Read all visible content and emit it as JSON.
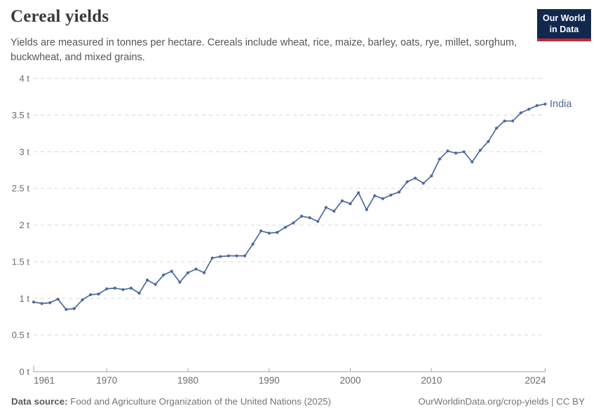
{
  "header": {
    "title": "Cereal yields",
    "subtitle": "Yields are measured in tonnes per hectare. Cereals include wheat, rice, maize, barley, oats, rye, millet, sorghum, buckwheat, and mixed grains.",
    "logo": {
      "line1": "Our World",
      "line2": "in Data"
    }
  },
  "colors": {
    "series_blue": "#4c6a9c",
    "grid": "#d8d8d8",
    "axis": "#a6a6a6",
    "tick_text": "#6b6b6b",
    "logo_navy": "#12284e",
    "logo_red": "#bc2b36"
  },
  "chart_data": {
    "type": "line",
    "title": "Cereal yields",
    "ylabel": "tonnes per hectare",
    "xlabel": "",
    "xlim": [
      1961,
      2024
    ],
    "ylim": [
      0,
      4
    ],
    "grid": "horizontal-dashed",
    "legend_position": "end-of-line-label",
    "y_ticks": [
      {
        "value": 0,
        "label": "0 t"
      },
      {
        "value": 0.5,
        "label": "0.5 t"
      },
      {
        "value": 1,
        "label": "1 t"
      },
      {
        "value": 1.5,
        "label": "1.5 t"
      },
      {
        "value": 2,
        "label": "2 t"
      },
      {
        "value": 2.5,
        "label": "2.5 t"
      },
      {
        "value": 3,
        "label": "3 t"
      },
      {
        "value": 3.5,
        "label": "3.5 t"
      },
      {
        "value": 4,
        "label": "4 t"
      }
    ],
    "x_ticks": [
      {
        "year": 1961,
        "label": "1961",
        "anchor": "start"
      },
      {
        "year": 1970,
        "label": "1970",
        "anchor": "middle"
      },
      {
        "year": 1980,
        "label": "1980",
        "anchor": "middle"
      },
      {
        "year": 1990,
        "label": "1990",
        "anchor": "middle"
      },
      {
        "year": 2000,
        "label": "2000",
        "anchor": "middle"
      },
      {
        "year": 2010,
        "label": "2010",
        "anchor": "middle"
      },
      {
        "year": 2024,
        "label": "2024",
        "anchor": "end"
      }
    ],
    "series": [
      {
        "name": "India",
        "color": "#4c6a9c",
        "x": [
          1961,
          1962,
          1963,
          1964,
          1965,
          1966,
          1967,
          1968,
          1969,
          1970,
          1971,
          1972,
          1973,
          1974,
          1975,
          1976,
          1977,
          1978,
          1979,
          1980,
          1981,
          1982,
          1983,
          1984,
          1985,
          1986,
          1987,
          1988,
          1989,
          1990,
          1991,
          1992,
          1993,
          1994,
          1995,
          1996,
          1997,
          1998,
          1999,
          2000,
          2001,
          2002,
          2003,
          2004,
          2005,
          2006,
          2007,
          2008,
          2009,
          2010,
          2011,
          2012,
          2013,
          2014,
          2015,
          2016,
          2017,
          2018,
          2019,
          2020,
          2021,
          2022,
          2023,
          2024
        ],
        "values": [
          0.95,
          0.93,
          0.94,
          0.99,
          0.85,
          0.86,
          0.98,
          1.05,
          1.06,
          1.13,
          1.14,
          1.12,
          1.14,
          1.07,
          1.25,
          1.19,
          1.32,
          1.37,
          1.22,
          1.35,
          1.4,
          1.35,
          1.55,
          1.57,
          1.58,
          1.58,
          1.58,
          1.74,
          1.92,
          1.89,
          1.9,
          1.97,
          2.03,
          2.12,
          2.1,
          2.05,
          2.24,
          2.19,
          2.33,
          2.29,
          2.44,
          2.21,
          2.4,
          2.36,
          2.41,
          2.45,
          2.59,
          2.64,
          2.57,
          2.67,
          2.9,
          3.01,
          2.98,
          3.0,
          2.86,
          3.02,
          3.14,
          3.32,
          3.42,
          3.42,
          3.53,
          3.58,
          3.63,
          3.65
        ]
      }
    ]
  },
  "footer": {
    "source_label": "Data source:",
    "source_text": " Food and Agriculture Organization of the United Nations (2025)",
    "right_text": "OurWorldinData.org/crop-yields | CC BY"
  }
}
